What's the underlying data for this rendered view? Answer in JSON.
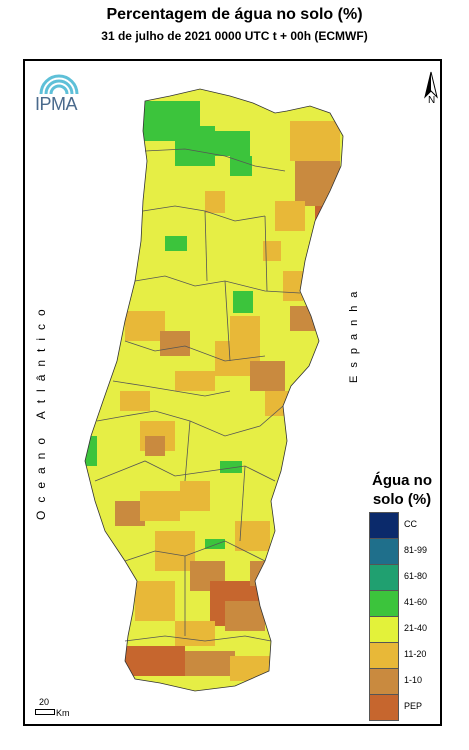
{
  "header": {
    "title": "Percentagem de água no solo (%)",
    "subtitle": "31 de julho de 2021 0000 UTC t + 00h (ECMWF)"
  },
  "logo": {
    "text": "IPMA"
  },
  "map": {
    "north_label": "N",
    "ocean_label": "Oceano Atlântico",
    "spain_label": "Espanha",
    "scale_value": "20",
    "scale_unit": "Km"
  },
  "legend": {
    "title_line1": "Água no",
    "title_line2": "solo (%)",
    "classes": [
      {
        "label": "CC",
        "color": "#0b2a6b"
      },
      {
        "label": "81-99",
        "color": "#1f6f8b"
      },
      {
        "label": "61-80",
        "color": "#20a070"
      },
      {
        "label": "41-60",
        "color": "#3cc43c"
      },
      {
        "label": "21-40",
        "color": "#e3f23a"
      },
      {
        "label": "11-20",
        "color": "#e8b838"
      },
      {
        "label": "1-10",
        "color": "#c98a3f"
      },
      {
        "label": "PEP",
        "color": "#c6662e"
      }
    ]
  }
}
